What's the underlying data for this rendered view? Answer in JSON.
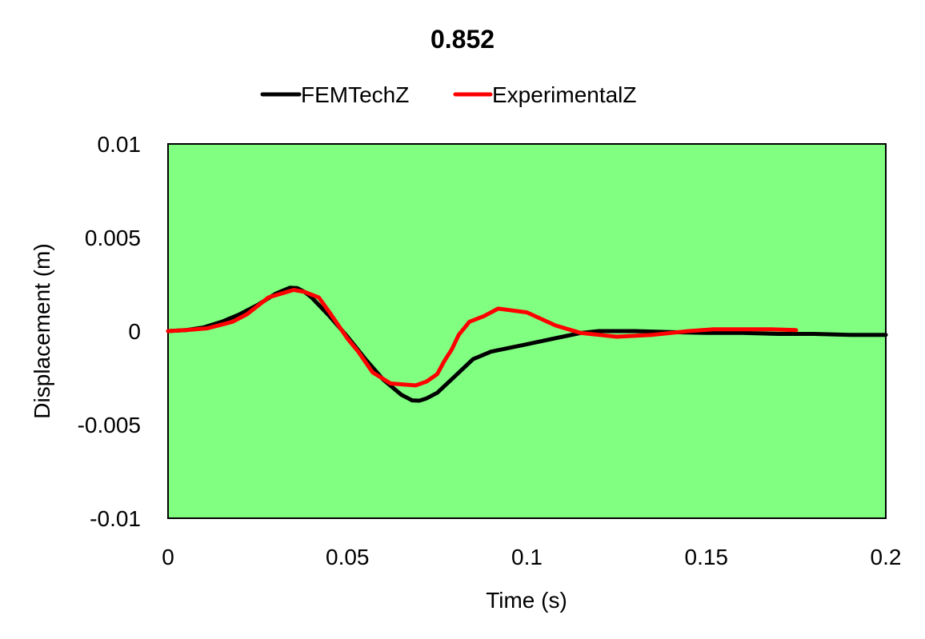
{
  "chart_data": {
    "type": "line",
    "title": "0.852",
    "xlabel": "Time (s)",
    "ylabel": "Displacement (m)",
    "xlim": [
      0,
      0.2
    ],
    "ylim": [
      -0.01,
      0.01
    ],
    "xticks": [
      0,
      0.05,
      0.1,
      0.15,
      0.2
    ],
    "xtick_labels": [
      "0",
      "0.05",
      "0.1",
      "0.15",
      "0.2"
    ],
    "yticks": [
      -0.01,
      -0.005,
      0,
      0.005,
      0.01
    ],
    "ytick_labels": [
      "-0.01",
      "-0.005",
      "0",
      "0.005",
      "0.01"
    ],
    "grid": false,
    "legend_position": "top",
    "plot_background": "#80ff80",
    "series": [
      {
        "name": "FEMTechZ",
        "color": "#000000",
        "points": [
          [
            0,
            0
          ],
          [
            0.005,
            5e-05
          ],
          [
            0.01,
            0.0002
          ],
          [
            0.015,
            0.0005
          ],
          [
            0.02,
            0.0009
          ],
          [
            0.025,
            0.0014
          ],
          [
            0.03,
            0.002
          ],
          [
            0.034,
            0.00232
          ],
          [
            0.036,
            0.0023
          ],
          [
            0.038,
            0.0021
          ],
          [
            0.04,
            0.0018
          ],
          [
            0.045,
            0.0008
          ],
          [
            0.05,
            -0.0003
          ],
          [
            0.055,
            -0.0015
          ],
          [
            0.06,
            -0.0026
          ],
          [
            0.065,
            -0.0034
          ],
          [
            0.068,
            -0.0037
          ],
          [
            0.07,
            -0.00372
          ],
          [
            0.072,
            -0.0036
          ],
          [
            0.075,
            -0.0033
          ],
          [
            0.08,
            -0.0024
          ],
          [
            0.085,
            -0.0015
          ],
          [
            0.09,
            -0.0011
          ],
          [
            0.095,
            -0.0009
          ],
          [
            0.1,
            -0.0007
          ],
          [
            0.105,
            -0.0005
          ],
          [
            0.11,
            -0.0003
          ],
          [
            0.115,
            -0.0001
          ],
          [
            0.12,
            0
          ],
          [
            0.13,
            0
          ],
          [
            0.14,
            -5e-05
          ],
          [
            0.15,
            -0.0001
          ],
          [
            0.16,
            -0.0001
          ],
          [
            0.17,
            -0.00015
          ],
          [
            0.18,
            -0.00015
          ],
          [
            0.19,
            -0.0002
          ],
          [
            0.2,
            -0.0002
          ]
        ]
      },
      {
        "name": "ExperimentalZ",
        "color": "#ff0000",
        "points": [
          [
            0,
            0
          ],
          [
            0.005,
            5e-05
          ],
          [
            0.011,
            0.00015
          ],
          [
            0.018,
            0.0005
          ],
          [
            0.022,
            0.0009
          ],
          [
            0.028,
            0.0018
          ],
          [
            0.035,
            0.0022
          ],
          [
            0.038,
            0.0021
          ],
          [
            0.042,
            0.0018
          ],
          [
            0.045,
            0.001
          ],
          [
            0.05,
            -0.0004
          ],
          [
            0.053,
            -0.0011
          ],
          [
            0.057,
            -0.0022
          ],
          [
            0.062,
            -0.0028
          ],
          [
            0.069,
            -0.0029
          ],
          [
            0.072,
            -0.0027
          ],
          [
            0.075,
            -0.0023
          ],
          [
            0.077,
            -0.0016
          ],
          [
            0.079,
            -0.001
          ],
          [
            0.081,
            -0.0002
          ],
          [
            0.084,
            0.0005
          ],
          [
            0.088,
            0.0008
          ],
          [
            0.092,
            0.0012
          ],
          [
            0.1,
            0.001
          ],
          [
            0.108,
            0.0003
          ],
          [
            0.115,
            -0.0001
          ],
          [
            0.125,
            -0.0003
          ],
          [
            0.135,
            -0.0002
          ],
          [
            0.145,
            0
          ],
          [
            0.152,
            0.0001
          ],
          [
            0.16,
            0.0001
          ],
          [
            0.168,
            0.0001
          ],
          [
            0.175,
            5e-05
          ]
        ]
      }
    ]
  }
}
